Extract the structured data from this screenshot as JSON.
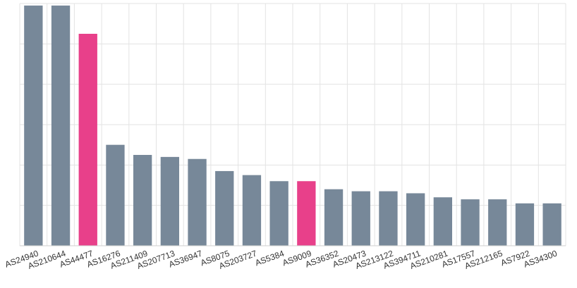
{
  "chart_data": {
    "type": "bar",
    "title": "",
    "xlabel": "",
    "ylabel": "",
    "grid": true,
    "y_tick_labels_visible": false,
    "ylim": [
      0,
      60
    ],
    "categories": [
      "AS24940",
      "AS210644",
      "AS44477",
      "AS16276",
      "AS211409",
      "AS207713",
      "AS36947",
      "AS8075",
      "AS203727",
      "AS5384",
      "AS9009",
      "AS36352",
      "AS20473",
      "AS213122",
      "AS394711",
      "AS210281",
      "AS17557",
      "AS212165",
      "AS7922",
      "AS34300"
    ],
    "values": [
      59.5,
      59.5,
      52.5,
      25,
      22.5,
      22,
      21.5,
      18.5,
      17.5,
      16,
      16,
      14,
      13.5,
      13.5,
      13,
      12,
      11.5,
      11.5,
      10.5,
      10.5
    ],
    "highlighted": [
      "AS44477",
      "AS9009"
    ],
    "colors": {
      "default": "#778899",
      "highlight": "#e8408a",
      "grid": "#e3e3e3",
      "axis": "#cfcfcf",
      "text": "#333333"
    }
  }
}
